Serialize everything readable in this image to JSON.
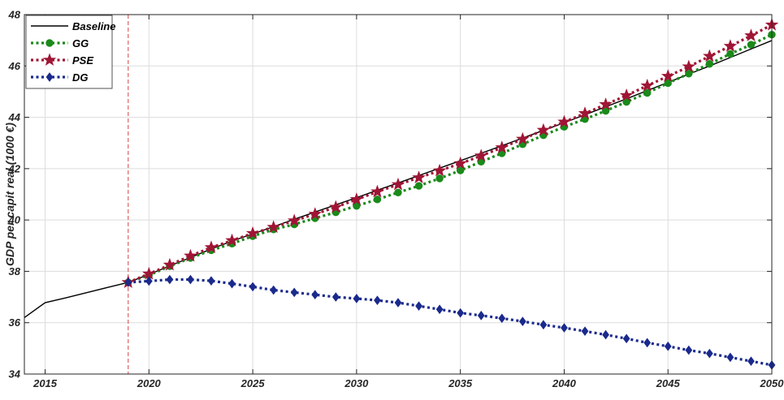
{
  "chart_data": {
    "type": "line",
    "title": "",
    "xlabel": "",
    "ylabel": "GDP per capit real (1000 €)",
    "xlim": [
      2014,
      2050
    ],
    "ylim": [
      34,
      48
    ],
    "xticks": [
      2015,
      2020,
      2025,
      2030,
      2035,
      2040,
      2045,
      2050
    ],
    "xtick_labels": [
      "2015",
      "2020",
      "2025",
      "2030",
      "2035",
      "2040",
      "2045",
      "2050"
    ],
    "yticks": [
      34,
      36,
      38,
      40,
      42,
      44,
      46,
      48
    ],
    "ytick_labels": [
      "34",
      "36",
      "38",
      "40",
      "42",
      "44",
      "46",
      "48"
    ],
    "grid": true,
    "legend_position": "top-left",
    "vertical_reference_line": 2019,
    "series": [
      {
        "name": "Baseline",
        "color": "#000000",
        "style": "solid",
        "marker": "none",
        "x": [
          2014,
          2015,
          2016,
          2017,
          2018,
          2019,
          2020,
          2021,
          2022,
          2023,
          2024,
          2025,
          2026,
          2027,
          2028,
          2029,
          2030,
          2031,
          2032,
          2033,
          2034,
          2035,
          2036,
          2037,
          2038,
          2039,
          2040,
          2041,
          2042,
          2043,
          2044,
          2045,
          2046,
          2047,
          2048,
          2049,
          2050
        ],
        "values": [
          36.2,
          36.78,
          36.97,
          37.17,
          37.37,
          37.57,
          37.88,
          38.21,
          38.54,
          38.87,
          39.18,
          39.46,
          39.74,
          40.03,
          40.31,
          40.59,
          40.87,
          41.16,
          41.44,
          41.73,
          42.02,
          42.31,
          42.6,
          42.89,
          43.19,
          43.49,
          43.79,
          44.1,
          44.41,
          44.72,
          45.04,
          45.36,
          45.68,
          46.0,
          46.33,
          46.66,
          46.99
        ]
      },
      {
        "name": "GG",
        "color": "#1a8a1a",
        "style": "dotted",
        "marker": "circle",
        "x": [
          2019,
          2020,
          2021,
          2022,
          2023,
          2024,
          2025,
          2026,
          2027,
          2028,
          2029,
          2030,
          2031,
          2032,
          2033,
          2034,
          2035,
          2036,
          2037,
          2038,
          2039,
          2040,
          2041,
          2042,
          2043,
          2044,
          2045,
          2046,
          2047,
          2048,
          2049,
          2050
        ],
        "values": [
          37.57,
          37.85,
          38.2,
          38.52,
          38.82,
          39.08,
          39.37,
          39.63,
          39.83,
          40.07,
          40.3,
          40.55,
          40.8,
          41.07,
          41.33,
          41.62,
          41.93,
          42.27,
          42.6,
          42.95,
          43.3,
          43.63,
          43.93,
          44.25,
          44.6,
          44.95,
          45.33,
          45.7,
          46.08,
          46.47,
          46.83,
          47.22
        ]
      },
      {
        "name": "PSE",
        "color": "#a01535",
        "style": "dotted",
        "marker": "star",
        "x": [
          2019,
          2020,
          2021,
          2022,
          2023,
          2024,
          2025,
          2026,
          2027,
          2028,
          2029,
          2030,
          2031,
          2032,
          2033,
          2034,
          2035,
          2036,
          2037,
          2038,
          2039,
          2040,
          2041,
          2042,
          2043,
          2044,
          2045,
          2046,
          2047,
          2048,
          2049,
          2050
        ],
        "values": [
          37.57,
          37.9,
          38.25,
          38.6,
          38.93,
          39.2,
          39.48,
          39.72,
          39.97,
          40.23,
          40.5,
          40.8,
          41.1,
          41.38,
          41.65,
          41.92,
          42.2,
          42.5,
          42.82,
          43.15,
          43.5,
          43.82,
          44.15,
          44.5,
          44.85,
          45.23,
          45.6,
          45.97,
          46.38,
          46.77,
          47.18,
          47.6
        ]
      },
      {
        "name": "DG",
        "color": "#1a2a8c",
        "style": "dotted",
        "marker": "diamond",
        "x": [
          2019,
          2020,
          2021,
          2022,
          2023,
          2024,
          2025,
          2026,
          2027,
          2028,
          2029,
          2030,
          2031,
          2032,
          2033,
          2034,
          2035,
          2036,
          2037,
          2038,
          2039,
          2040,
          2041,
          2042,
          2043,
          2044,
          2045,
          2046,
          2047,
          2048,
          2049,
          2050
        ],
        "values": [
          37.57,
          37.62,
          37.68,
          37.68,
          37.63,
          37.52,
          37.4,
          37.27,
          37.18,
          37.09,
          37.0,
          36.94,
          36.87,
          36.78,
          36.65,
          36.52,
          36.38,
          36.28,
          36.17,
          36.05,
          35.92,
          35.8,
          35.67,
          35.53,
          35.38,
          35.22,
          35.08,
          34.93,
          34.8,
          34.65,
          34.5,
          34.35
        ]
      }
    ]
  }
}
